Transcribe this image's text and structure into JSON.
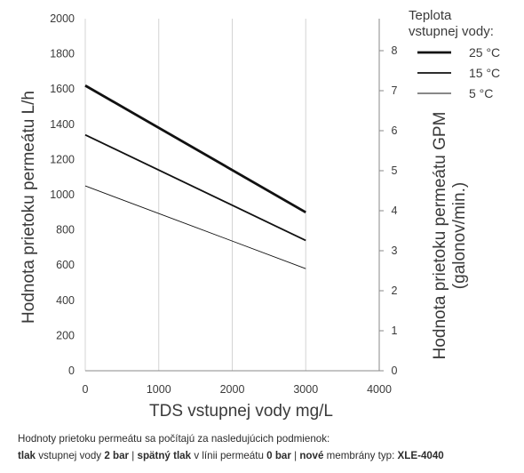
{
  "chart_data": {
    "type": "line",
    "xlabel": "TDS vstupnej vody mg/L",
    "ylabel": "Hodnota prietoku permeátu L/h",
    "y2label": [
      "Hodnota prietoku permeátu GPM",
      "(galonov/min.)"
    ],
    "xlim": [
      0,
      4000
    ],
    "ylim": [
      0,
      2000
    ],
    "y2lim": [
      0,
      8.8
    ],
    "xticks": [
      0,
      1000,
      2000,
      3000,
      4000
    ],
    "yticks": [
      0,
      200,
      400,
      600,
      800,
      1000,
      1200,
      1400,
      1600,
      1800,
      2000
    ],
    "y2ticks": [
      0,
      1,
      2,
      3,
      4,
      5,
      6,
      7,
      8
    ],
    "grid": "vertical",
    "legend_title": [
      "Teplota",
      "vstupnej vody:"
    ],
    "legend_position": "top-right",
    "series": [
      {
        "name": "25 °C",
        "x": [
          0,
          3000
        ],
        "y": [
          1620,
          900
        ],
        "line_width": "thick"
      },
      {
        "name": "15 °C",
        "x": [
          0,
          3000
        ],
        "y": [
          1340,
          740
        ],
        "line_width": "medium"
      },
      {
        "name": "5 °C",
        "x": [
          0,
          3000
        ],
        "y": [
          1050,
          580
        ],
        "line_width": "thin"
      }
    ]
  },
  "footnote": {
    "line1": "Hodnoty prietoku permeátu sa počítajú za nasledujúcich podmienok:",
    "line2": [
      {
        "text": "tlak",
        "bold": true
      },
      {
        "text": " vstupnej vody ",
        "bold": false
      },
      {
        "text": "2 bar",
        "bold": true
      },
      {
        "text": " | ",
        "bold": false
      },
      {
        "text": "spätný tlak",
        "bold": true
      },
      {
        "text": " v línii permeátu ",
        "bold": false
      },
      {
        "text": "0 bar",
        "bold": true
      },
      {
        "text": " | ",
        "bold": false
      },
      {
        "text": "nové",
        "bold": true
      },
      {
        "text": " membrány typ: ",
        "bold": false
      },
      {
        "text": "XLE-4040",
        "bold": true
      }
    ]
  }
}
